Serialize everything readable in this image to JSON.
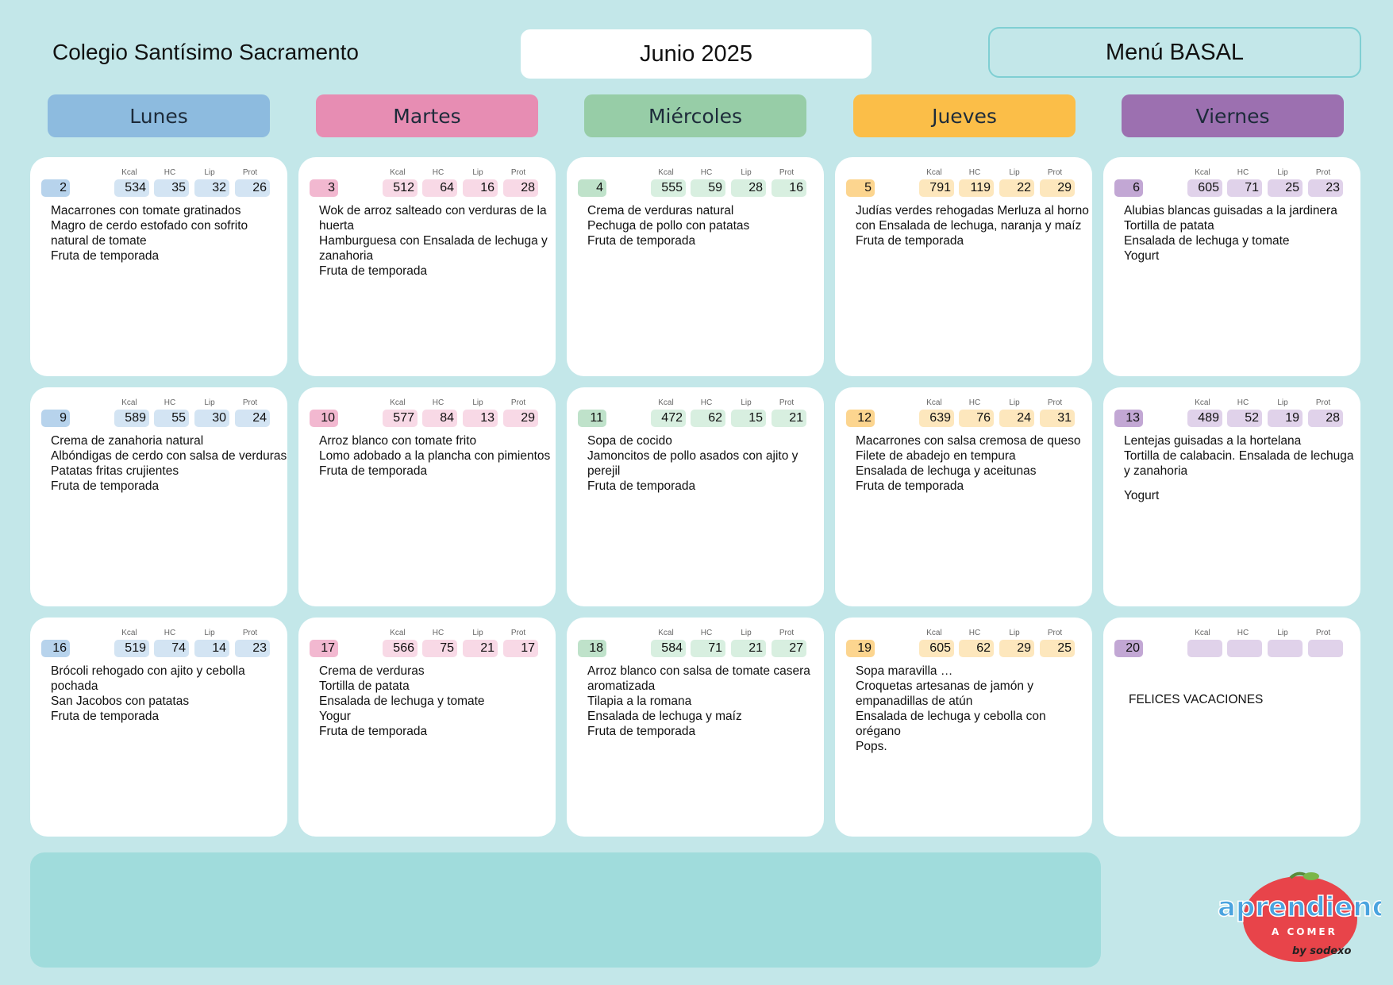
{
  "header": {
    "school": "Colegio Santísimo Sacramento",
    "month": "Junio 2025",
    "menu_type": "Menú BASAL"
  },
  "nutrient_labels": {
    "kcal": "Kcal",
    "hc": "HC",
    "lip": "Lip",
    "prot": "Prot"
  },
  "days": [
    {
      "name": "Lunes",
      "color": "#8dbbdf",
      "pill": "#d3e4f3",
      "datepill": "#b7d3ec"
    },
    {
      "name": "Martes",
      "color": "#e78db3",
      "pill": "#f8d9e6",
      "datepill": "#f2b8d0"
    },
    {
      "name": "Miércoles",
      "color": "#97cda7",
      "pill": "#d8efe0",
      "datepill": "#bfe2ca"
    },
    {
      "name": "Jueves",
      "color": "#fbbe48",
      "pill": "#fde7bd",
      "datepill": "#fcd58f"
    },
    {
      "name": "Viernes",
      "color": "#9c70b0",
      "pill": "#e0d2ea",
      "datepill": "#c2a7d4"
    }
  ],
  "weeks": [
    [
      {
        "date": "2",
        "kcal": "534",
        "hc": "35",
        "lip": "32",
        "prot": "26",
        "dishes": [
          "Macarrones con tomate gratinados",
          "Magro de cerdo estofado con sofrito natural de tomate",
          "Fruta de temporada"
        ]
      },
      {
        "date": "3",
        "kcal": "512",
        "hc": "64",
        "lip": "16",
        "prot": "28",
        "dishes": [
          "Wok de arroz salteado con verduras de la huerta",
          "Hamburguesa con Ensalada de lechuga y zanahoria",
          "Fruta de temporada"
        ]
      },
      {
        "date": "4",
        "kcal": "555",
        "hc": "59",
        "lip": "28",
        "prot": "16",
        "dishes": [
          "Crema de verduras natural",
          "Pechuga de pollo con patatas",
          "Fruta de temporada"
        ]
      },
      {
        "date": "5",
        "kcal": "791",
        "hc": "119",
        "lip": "22",
        "prot": "29",
        "dishes": [
          "Judías verdes rehogadas Merluza al horno con Ensalada de lechuga, naranja y maíz",
          "Fruta de temporada"
        ]
      },
      {
        "date": "6",
        "kcal": "605",
        "hc": "71",
        "lip": "25",
        "prot": "23",
        "dishes": [
          "Alubias blancas guisadas a la jardinera",
          "Tortilla de patata",
          "Ensalada de lechuga y tomate",
          "Yogurt"
        ]
      }
    ],
    [
      {
        "date": "9",
        "kcal": "589",
        "hc": "55",
        "lip": "30",
        "prot": "24",
        "dishes": [
          "Crema de zanahoria natural",
          "Albóndigas de cerdo con salsa de verduras",
          "Patatas fritas crujientes",
          "Fruta de temporada"
        ]
      },
      {
        "date": "10",
        "kcal": "577",
        "hc": "84",
        "lip": "13",
        "prot": "29",
        "dishes": [
          "Arroz blanco con tomate frito",
          "Lomo adobado a la plancha con pimientos",
          "Fruta de temporada"
        ]
      },
      {
        "date": "11",
        "kcal": "472",
        "hc": "62",
        "lip": "15",
        "prot": "21",
        "dishes": [
          "Sopa de cocido",
          "Jamoncitos de pollo asados con ajito y perejil",
          "Fruta de temporada"
        ]
      },
      {
        "date": "12",
        "kcal": "639",
        "hc": "76",
        "lip": "24",
        "prot": "31",
        "dishes": [
          "Macarrones con salsa cremosa de queso",
          "Filete de abadejo en tempura",
          "Ensalada de lechuga y aceitunas",
          "Fruta de temporada"
        ]
      },
      {
        "date": "13",
        "kcal": "489",
        "hc": "52",
        "lip": "19",
        "prot": "28",
        "dishes": [
          "Lentejas guisadas a la hortelana",
          "Tortilla de calabacin. Ensalada de lechuga y zanahoria",
          "",
          "Yogurt"
        ]
      }
    ],
    [
      {
        "date": "16",
        "kcal": "519",
        "hc": "74",
        "lip": "14",
        "prot": "23",
        "dishes": [
          "Brócoli rehogado con ajito y cebolla pochada",
          "San Jacobos con patatas",
          "Fruta de temporada"
        ]
      },
      {
        "date": "17",
        "kcal": "566",
        "hc": "75",
        "lip": "21",
        "prot": "17",
        "dishes": [
          "Crema de verduras",
          "Tortilla de patata",
          "Ensalada de lechuga y tomate",
          "Yogur",
          "Fruta de temporada"
        ]
      },
      {
        "date": "18",
        "kcal": "584",
        "hc": "71",
        "lip": "21",
        "prot": "27",
        "dishes": [
          "Arroz blanco con salsa de tomate casera aromatizada",
          "Tilapia a la romana",
          "Ensalada de lechuga y maíz",
          "Fruta de temporada"
        ]
      },
      {
        "date": "19",
        "kcal": "605",
        "hc": "62",
        "lip": "29",
        "prot": "25",
        "dishes": [
          "Sopa maravilla …",
          "Croquetas artesanas de jamón y empanadillas de atún",
          "Ensalada de lechuga y cebolla con orégano",
          "Pops."
        ]
      },
      {
        "date": "20",
        "kcal": "",
        "hc": "",
        "lip": "",
        "prot": "",
        "dishes": [
          "",
          "FELICES VACACIONES"
        ]
      }
    ]
  ],
  "logo": {
    "word": "aprendiendo",
    "sub": "A COMER",
    "by": "by sodexo",
    "apple_color": "#e8444a"
  }
}
